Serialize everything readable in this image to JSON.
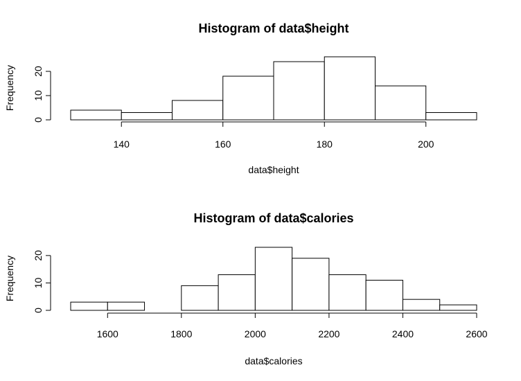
{
  "chart_data": [
    {
      "type": "bar",
      "title": "Histogram of data$height",
      "xlabel": "data$height",
      "ylabel": "Frequency",
      "bins": [
        {
          "from": 130,
          "to": 140,
          "count": 4
        },
        {
          "from": 140,
          "to": 150,
          "count": 3
        },
        {
          "from": 150,
          "to": 160,
          "count": 8
        },
        {
          "from": 160,
          "to": 170,
          "count": 18
        },
        {
          "from": 170,
          "to": 180,
          "count": 24
        },
        {
          "from": 180,
          "to": 190,
          "count": 26
        },
        {
          "from": 190,
          "to": 200,
          "count": 14
        },
        {
          "from": 200,
          "to": 210,
          "count": 3
        }
      ],
      "xlim": [
        130,
        210
      ],
      "ylim": [
        0,
        26
      ],
      "xticks": [
        140,
        160,
        180,
        200
      ],
      "yticks": [
        0,
        10,
        20
      ],
      "grid": false
    },
    {
      "type": "bar",
      "title": "Histogram of data$calories",
      "xlabel": "data$calories",
      "ylabel": "Frequency",
      "bins": [
        {
          "from": 1500,
          "to": 1600,
          "count": 3
        },
        {
          "from": 1600,
          "to": 1700,
          "count": 3
        },
        {
          "from": 1700,
          "to": 1800,
          "count": 0
        },
        {
          "from": 1800,
          "to": 1900,
          "count": 9
        },
        {
          "from": 1900,
          "to": 2000,
          "count": 13
        },
        {
          "from": 2000,
          "to": 2100,
          "count": 23
        },
        {
          "from": 2100,
          "to": 2200,
          "count": 19
        },
        {
          "from": 2200,
          "to": 2300,
          "count": 13
        },
        {
          "from": 2300,
          "to": 2400,
          "count": 11
        },
        {
          "from": 2400,
          "to": 2500,
          "count": 4
        },
        {
          "from": 2500,
          "to": 2600,
          "count": 2
        }
      ],
      "xlim": [
        1500,
        2600
      ],
      "ylim": [
        0,
        23
      ],
      "xticks": [
        1600,
        1800,
        2000,
        2200,
        2400,
        2600
      ],
      "yticks": [
        0,
        10,
        20
      ],
      "grid": false
    }
  ]
}
